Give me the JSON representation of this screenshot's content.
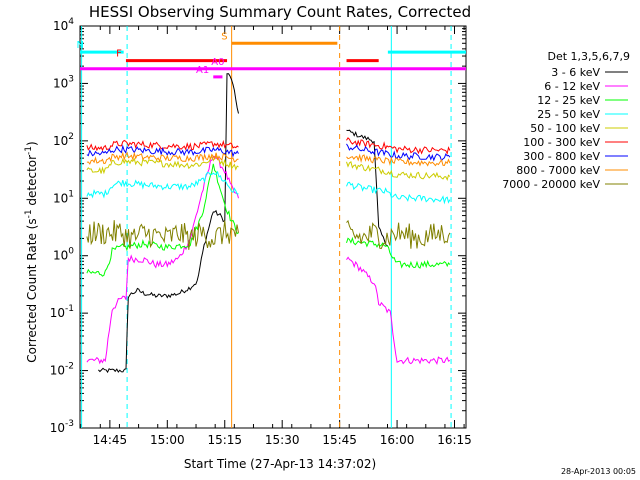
{
  "chart_data": {
    "type": "line",
    "title": "HESSI Observing Summary Count Rates, Corrected",
    "xlabel": "Start Time (27-Apr-13 14:37:02)",
    "ylabel_main": "Corrected Count Rate (s",
    "ylabel_sup1": "-1",
    "ylabel_mid": " detector",
    "ylabel_sup2": "-1",
    "ylabel_end": ")",
    "y_scale": "log",
    "ylim": [
      0.001,
      10000
    ],
    "xlim": [
      14.62,
      16.3
    ],
    "x_ticks": [
      {
        "t": 14.75,
        "label": "14:45"
      },
      {
        "t": 15.0,
        "label": "15:00"
      },
      {
        "t": 15.25,
        "label": "15:15"
      },
      {
        "t": 15.5,
        "label": "15:30"
      },
      {
        "t": 15.75,
        "label": "15:45"
      },
      {
        "t": 16.0,
        "label": "16:00"
      },
      {
        "t": 16.25,
        "label": "16:15"
      }
    ],
    "y_ticks": [
      {
        "exp": -3,
        "label_base": "10",
        "label_exp": "-3"
      },
      {
        "exp": -2,
        "label_base": "10",
        "label_exp": "-2"
      },
      {
        "exp": -1,
        "label_base": "10",
        "label_exp": "-1"
      },
      {
        "exp": 0,
        "label_base": "10",
        "label_exp": "0"
      },
      {
        "exp": 1,
        "label_base": "10",
        "label_exp": "1"
      },
      {
        "exp": 2,
        "label_base": "10",
        "label_exp": "2"
      },
      {
        "exp": 3,
        "label_base": "10",
        "label_exp": "3"
      },
      {
        "exp": 4,
        "label_base": "10",
        "label_exp": "4"
      }
    ],
    "legend_header": "Det 1,3,5,6,7,9",
    "legend_placement": "right",
    "gap": [
      15.31,
      15.78
    ],
    "series": [
      {
        "name": "3 - 6 keV",
        "color": "#000000",
        "points": [
          [
            14.7,
            0.01
          ],
          [
            14.8,
            0.01
          ],
          [
            14.82,
            0.01
          ],
          [
            14.83,
            0.2
          ],
          [
            14.87,
            0.25
          ],
          [
            14.9,
            0.22
          ],
          [
            14.95,
            0.2
          ],
          [
            15.0,
            0.2
          ],
          [
            15.05,
            0.22
          ],
          [
            15.1,
            0.28
          ],
          [
            15.13,
            0.35
          ],
          [
            15.16,
            1.5
          ],
          [
            15.2,
            6.0
          ],
          [
            15.23,
            5.0
          ],
          [
            15.25,
            4.0
          ],
          [
            15.26,
            1500
          ],
          [
            15.28,
            1200
          ],
          [
            15.31,
            300
          ],
          [
            15.78,
            150
          ],
          [
            15.8,
            140
          ],
          [
            15.84,
            120
          ],
          [
            15.9,
            100
          ],
          [
            15.92,
            3.0
          ],
          [
            15.94,
            2.0
          ],
          [
            15.96,
            1.5
          ]
        ]
      },
      {
        "name": "6 - 12 keV",
        "color": "#ff00ff",
        "points": [
          [
            14.65,
            0.015
          ],
          [
            14.7,
            0.015
          ],
          [
            14.73,
            0.015
          ],
          [
            14.76,
            0.12
          ],
          [
            14.8,
            0.18
          ],
          [
            14.82,
            0.18
          ],
          [
            14.83,
            0.9
          ],
          [
            14.9,
            0.85
          ],
          [
            14.95,
            0.7
          ],
          [
            15.0,
            0.7
          ],
          [
            15.05,
            0.9
          ],
          [
            15.1,
            2.0
          ],
          [
            15.15,
            12.0
          ],
          [
            15.2,
            60.0
          ],
          [
            15.25,
            30.0
          ],
          [
            15.28,
            15.0
          ],
          [
            15.31,
            10.0
          ],
          [
            15.78,
            0.9
          ],
          [
            15.8,
            0.8
          ],
          [
            15.84,
            0.6
          ],
          [
            15.88,
            0.4
          ],
          [
            15.9,
            0.35
          ],
          [
            15.92,
            0.15
          ],
          [
            15.95,
            0.12
          ],
          [
            15.97,
            0.1
          ],
          [
            16.0,
            0.015
          ],
          [
            16.1,
            0.015
          ],
          [
            16.2,
            0.015
          ],
          [
            16.23,
            0.015
          ]
        ]
      },
      {
        "name": "12 - 25 keV",
        "color": "#00ff00",
        "points": [
          [
            14.65,
            0.5
          ],
          [
            14.7,
            0.5
          ],
          [
            14.73,
            0.5
          ],
          [
            14.76,
            1.2
          ],
          [
            14.8,
            1.4
          ],
          [
            14.83,
            1.4
          ],
          [
            14.85,
            1.5
          ],
          [
            14.9,
            1.6
          ],
          [
            15.0,
            1.4
          ],
          [
            15.1,
            1.6
          ],
          [
            15.15,
            5.0
          ],
          [
            15.2,
            40.0
          ],
          [
            15.25,
            8.0
          ],
          [
            15.28,
            4.0
          ],
          [
            15.31,
            2.5
          ],
          [
            15.78,
            1.8
          ],
          [
            15.85,
            1.7
          ],
          [
            15.9,
            1.6
          ],
          [
            15.95,
            1.5
          ],
          [
            16.0,
            0.7
          ],
          [
            16.1,
            0.7
          ],
          [
            16.2,
            0.7
          ],
          [
            16.23,
            0.7
          ]
        ]
      },
      {
        "name": "25 - 50 keV",
        "color": "#00ffff",
        "points": [
          [
            14.65,
            12.0
          ],
          [
            14.7,
            12.0
          ],
          [
            14.73,
            12.0
          ],
          [
            14.76,
            17.0
          ],
          [
            14.8,
            19.0
          ],
          [
            14.85,
            18.0
          ],
          [
            14.9,
            17.0
          ],
          [
            15.0,
            16.0
          ],
          [
            15.1,
            16.0
          ],
          [
            15.15,
            20.0
          ],
          [
            15.2,
            30.0
          ],
          [
            15.25,
            20.0
          ],
          [
            15.28,
            14.0
          ],
          [
            15.31,
            12.0
          ],
          [
            15.78,
            18.0
          ],
          [
            15.85,
            15.0
          ],
          [
            15.9,
            14.0
          ],
          [
            15.95,
            13.0
          ],
          [
            16.0,
            10.0
          ],
          [
            16.1,
            10.0
          ],
          [
            16.2,
            9.5
          ],
          [
            16.23,
            9.5
          ]
        ]
      },
      {
        "name": "50 - 100 keV",
        "color": "#cccc00",
        "points": [
          [
            14.65,
            30.0
          ],
          [
            14.7,
            30.0
          ],
          [
            14.73,
            30.0
          ],
          [
            14.76,
            40.0
          ],
          [
            14.8,
            44.0
          ],
          [
            14.85,
            43.0
          ],
          [
            14.9,
            42.0
          ],
          [
            15.0,
            40.0
          ],
          [
            15.1,
            38.0
          ],
          [
            15.15,
            40.0
          ],
          [
            15.2,
            50.0
          ],
          [
            15.25,
            42.0
          ],
          [
            15.28,
            38.0
          ],
          [
            15.31,
            35.0
          ],
          [
            15.78,
            40.0
          ],
          [
            15.85,
            35.0
          ],
          [
            15.9,
            32.0
          ],
          [
            15.95,
            30.0
          ],
          [
            16.0,
            26.0
          ],
          [
            16.1,
            25.0
          ],
          [
            16.2,
            24.0
          ],
          [
            16.23,
            24.0
          ]
        ]
      },
      {
        "name": "100 - 300 keV",
        "color": "#ff0000",
        "points": [
          [
            14.65,
            75.0
          ],
          [
            14.7,
            75.0
          ],
          [
            14.73,
            75.0
          ],
          [
            14.76,
            85.0
          ],
          [
            14.8,
            90.0
          ],
          [
            14.85,
            88.0
          ],
          [
            14.9,
            86.0
          ],
          [
            15.0,
            82.0
          ],
          [
            15.1,
            80.0
          ],
          [
            15.15,
            82.0
          ],
          [
            15.2,
            90.0
          ],
          [
            15.25,
            85.0
          ],
          [
            15.28,
            80.0
          ],
          [
            15.31,
            78.0
          ],
          [
            15.78,
            100.0
          ],
          [
            15.85,
            90.0
          ],
          [
            15.9,
            85.0
          ],
          [
            15.95,
            80.0
          ],
          [
            16.0,
            72.0
          ],
          [
            16.1,
            70.0
          ],
          [
            16.2,
            68.0
          ],
          [
            16.23,
            68.0
          ]
        ]
      },
      {
        "name": "300 - 800 keV",
        "color": "#0000ff",
        "points": [
          [
            14.65,
            60.0
          ],
          [
            14.7,
            60.0
          ],
          [
            14.73,
            60.0
          ],
          [
            14.76,
            70.0
          ],
          [
            14.8,
            72.0
          ],
          [
            14.85,
            70.0
          ],
          [
            14.9,
            68.0
          ],
          [
            15.0,
            65.0
          ],
          [
            15.1,
            64.0
          ],
          [
            15.15,
            66.0
          ],
          [
            15.2,
            70.0
          ],
          [
            15.25,
            66.0
          ],
          [
            15.28,
            62.0
          ],
          [
            15.31,
            60.0
          ],
          [
            15.78,
            80.0
          ],
          [
            15.85,
            70.0
          ],
          [
            15.9,
            65.0
          ],
          [
            15.95,
            60.0
          ],
          [
            16.0,
            55.0
          ],
          [
            16.1,
            54.0
          ],
          [
            16.2,
            52.0
          ],
          [
            16.23,
            52.0
          ]
        ]
      },
      {
        "name": "800 - 7000 keV",
        "color": "#ff8c00",
        "points": [
          [
            14.65,
            45.0
          ],
          [
            14.7,
            45.0
          ],
          [
            14.73,
            45.0
          ],
          [
            14.76,
            52.0
          ],
          [
            14.8,
            55.0
          ],
          [
            14.85,
            54.0
          ],
          [
            14.9,
            52.0
          ],
          [
            15.0,
            50.0
          ],
          [
            15.1,
            50.0
          ],
          [
            15.15,
            52.0
          ],
          [
            15.2,
            56.0
          ],
          [
            15.25,
            52.0
          ],
          [
            15.28,
            50.0
          ],
          [
            15.31,
            48.0
          ],
          [
            15.78,
            55.0
          ],
          [
            15.85,
            50.0
          ],
          [
            15.9,
            47.0
          ],
          [
            15.95,
            45.0
          ],
          [
            16.0,
            43.0
          ],
          [
            16.1,
            42.0
          ],
          [
            16.2,
            41.0
          ],
          [
            16.23,
            41.0
          ]
        ]
      },
      {
        "name": "7000 - 20000 keV",
        "color": "#808000",
        "points": [
          [
            14.65,
            2.5
          ],
          [
            14.7,
            2.5
          ],
          [
            14.75,
            2.5
          ],
          [
            14.8,
            2.5
          ],
          [
            14.85,
            2.0
          ],
          [
            14.9,
            2.5
          ],
          [
            15.0,
            2.0
          ],
          [
            15.05,
            2.5
          ],
          [
            15.1,
            2.0
          ],
          [
            15.15,
            2.5
          ],
          [
            15.2,
            2.0
          ],
          [
            15.25,
            2.5
          ],
          [
            15.31,
            2.5
          ],
          [
            15.78,
            2.5
          ],
          [
            15.85,
            2.0
          ],
          [
            15.9,
            2.5
          ],
          [
            15.95,
            2.0
          ],
          [
            16.0,
            2.5
          ],
          [
            16.1,
            2.0
          ],
          [
            16.2,
            2.5
          ],
          [
            16.23,
            2.5
          ]
        ]
      }
    ],
    "flag_bars": [
      {
        "label": "N",
        "color": "#00ffff",
        "y": 3500,
        "segments": [
          [
            14.62,
            14.81
          ],
          [
            15.96,
            16.3
          ]
        ]
      },
      {
        "label": "F",
        "color": "#ff0000",
        "y": 2500,
        "segments": [
          [
            14.82,
            15.26
          ],
          [
            15.78,
            15.92
          ]
        ]
      },
      {
        "label": "S",
        "color": "#ff8c00",
        "y": 5000,
        "segments": [
          [
            15.28,
            15.74
          ]
        ]
      },
      {
        "label": "A0",
        "color": "#ff00ff",
        "y": 1800,
        "segments": [
          [
            14.62,
            16.3
          ]
        ]
      },
      {
        "label": "A1",
        "color": "#ff00ff",
        "y": 1300,
        "segments": [
          [
            15.2,
            15.24
          ]
        ]
      }
    ],
    "vertical_lines": [
      {
        "t": 14.627,
        "color": "#00ffff",
        "style": "solid"
      },
      {
        "t": 14.825,
        "color": "#00ffff",
        "style": "dashed"
      },
      {
        "t": 15.28,
        "color": "#ff8c00",
        "style": "solid"
      },
      {
        "t": 15.75,
        "color": "#ff8c00",
        "style": "dashed"
      },
      {
        "t": 15.975,
        "color": "#00ffff",
        "style": "solid"
      },
      {
        "t": 16.235,
        "color": "#00ffff",
        "style": "dashed"
      }
    ]
  },
  "footer_date": "28-Apr-2013 00:05"
}
